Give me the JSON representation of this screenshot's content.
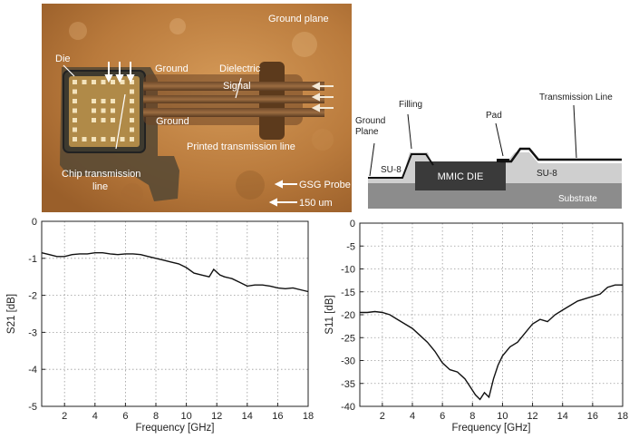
{
  "photo": {
    "labels": {
      "ground_plane": "Ground plane",
      "die": "Die",
      "ground_top": "Ground",
      "dielectric": "Dielectric",
      "signal": "Signal",
      "ground_bottom": "Ground",
      "printed_line": "Printed transmission line",
      "chip_line_1": "Chip transmission",
      "chip_line_2": "line",
      "gsg_probe": "GSG Probe",
      "scale": "150 um"
    }
  },
  "cross_section": {
    "labels": {
      "filling": "Filling",
      "transmission_line": "Transmission Line",
      "ground_1": "Ground",
      "ground_2": "Plane",
      "pad": "Pad",
      "su8_left": "SU-8",
      "mmic_die": "MMIC DIE",
      "su8_right": "SU-8",
      "substrate": "Substrate"
    }
  },
  "chart_data": [
    {
      "type": "line",
      "xlabel": "Frequency [GHz]",
      "ylabel": "S21 [dB]",
      "xlim": [
        0.5,
        18
      ],
      "ylim": [
        -5,
        0
      ],
      "xticks": [
        2,
        4,
        6,
        8,
        10,
        12,
        14,
        16,
        18
      ],
      "yticks": [
        0,
        -1,
        -2,
        -3,
        -4,
        -5
      ],
      "grid": true,
      "x": [
        0.5,
        1,
        1.5,
        2,
        2.5,
        3,
        3.5,
        4,
        4.5,
        5,
        5.5,
        6,
        6.5,
        7,
        7.5,
        8,
        8.5,
        9,
        9.5,
        10,
        10.5,
        11,
        11.5,
        11.8,
        12.2,
        12.5,
        13,
        13.5,
        14,
        14.5,
        15,
        15.5,
        16,
        16.5,
        17,
        17.5,
        18
      ],
      "y": [
        -0.85,
        -0.9,
        -0.95,
        -0.95,
        -0.9,
        -0.88,
        -0.88,
        -0.85,
        -0.85,
        -0.88,
        -0.9,
        -0.88,
        -0.88,
        -0.9,
        -0.95,
        -1.0,
        -1.05,
        -1.1,
        -1.15,
        -1.25,
        -1.4,
        -1.45,
        -1.5,
        -1.3,
        -1.45,
        -1.5,
        -1.55,
        -1.65,
        -1.75,
        -1.72,
        -1.72,
        -1.75,
        -1.8,
        -1.82,
        -1.8,
        -1.85,
        -1.9
      ]
    },
    {
      "type": "line",
      "xlabel": "Frequency [GHz]",
      "ylabel": "S11 [dB]",
      "xlim": [
        0.5,
        18
      ],
      "ylim": [
        -40,
        0
      ],
      "xticks": [
        2,
        4,
        6,
        8,
        10,
        12,
        14,
        16,
        18
      ],
      "yticks": [
        0,
        -5,
        -10,
        -15,
        -20,
        -25,
        -30,
        -35,
        -40
      ],
      "grid": true,
      "x": [
        0.5,
        1,
        1.5,
        2,
        2.5,
        3,
        3.5,
        4,
        4.5,
        5,
        5.5,
        6,
        6.5,
        7,
        7.5,
        7.8,
        8.2,
        8.5,
        8.8,
        9.1,
        9.4,
        9.7,
        10,
        10.5,
        11,
        11.5,
        12,
        12.5,
        13,
        13.5,
        14,
        14.5,
        15,
        15.5,
        16,
        16.5,
        17,
        17.5,
        18
      ],
      "y": [
        -19.5,
        -19.5,
        -19.3,
        -19.5,
        -20,
        -21,
        -22,
        -23,
        -24.5,
        -26,
        -28,
        -30.5,
        -32,
        -32.5,
        -34,
        -35.5,
        -37.5,
        -38.5,
        -37,
        -38,
        -34,
        -31,
        -29,
        -27,
        -26,
        -24,
        -22,
        -21,
        -21.5,
        -20,
        -19,
        -18,
        -17,
        -16.5,
        -16,
        -15.5,
        -14,
        -13.5,
        -13.5
      ]
    }
  ]
}
